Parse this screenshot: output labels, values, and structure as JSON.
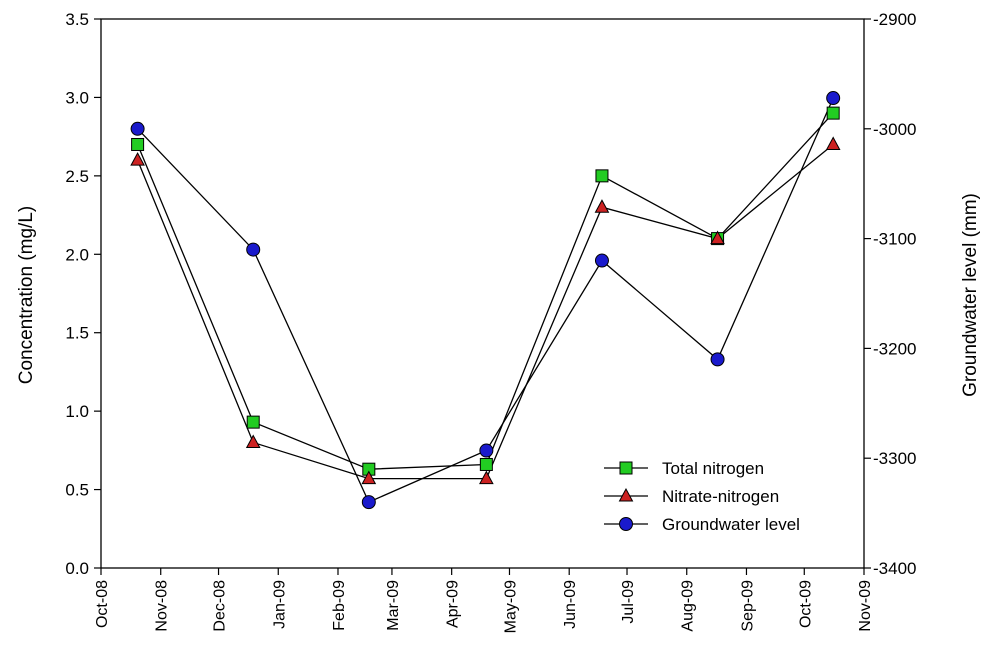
{
  "chart_data": {
    "type": "line",
    "x_tick_labels": [
      "Oct-08",
      "Nov-08",
      "Dec-08",
      "Jan-09",
      "Feb-09",
      "Mar-09",
      "Apr-09",
      "May-09",
      "Jun-09",
      "Jul-09",
      "Aug-09",
      "Sep-09",
      "Oct-09",
      "Nov-09"
    ],
    "x": [
      "2008-10-20",
      "2008-12-19",
      "2009-02-17",
      "2009-04-19",
      "2009-06-18",
      "2009-08-17",
      "2009-10-16"
    ],
    "ylabel": "Concentration (mg/L)",
    "y2label": "Groundwater level (mm)",
    "ylim": [
      0.0,
      3.5
    ],
    "y2lim": [
      -3400,
      -2900
    ],
    "y_ticks": [
      "0.0",
      "0.5",
      "1.0",
      "1.5",
      "2.0",
      "2.5",
      "3.0",
      "3.5"
    ],
    "y2_ticks": [
      "-3400",
      "-3300",
      "-3200",
      "-3100",
      "-3000",
      "-2900"
    ],
    "series": [
      {
        "name": "Total nitrogen",
        "axis": "left",
        "marker": "square",
        "color": "#22cc22",
        "values": [
          2.7,
          0.93,
          0.63,
          0.66,
          2.5,
          2.1,
          2.9
        ]
      },
      {
        "name": "Nitrate-nitrogen",
        "axis": "left",
        "marker": "triangle",
        "color": "#cc2222",
        "values": [
          2.6,
          0.8,
          0.57,
          0.57,
          2.3,
          2.1,
          2.7
        ]
      },
      {
        "name": "Groundwater level",
        "axis": "right",
        "marker": "circle",
        "color": "#1a1acc",
        "values": [
          -3000,
          -3110,
          -3340,
          -3293,
          -3120,
          -3210,
          -2972
        ]
      }
    ],
    "legend_position": "bottom-right",
    "grid": false
  }
}
